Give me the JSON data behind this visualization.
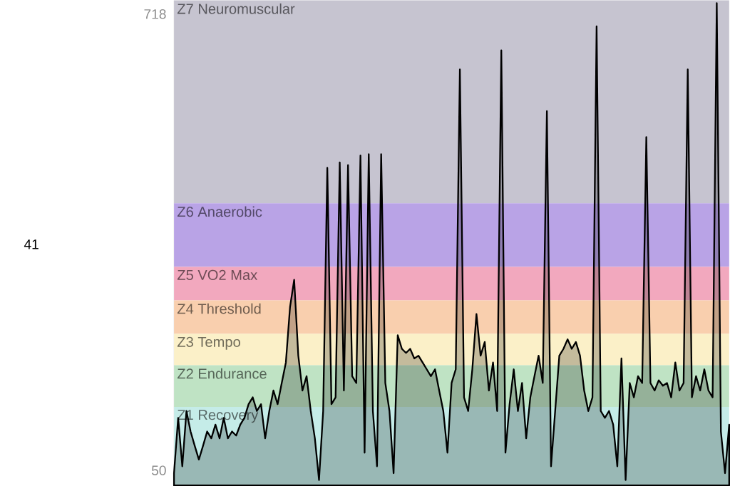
{
  "chart_data": {
    "type": "area",
    "categories": [
      null,
      null,
      null,
      null,
      null,
      null,
      null,
      null,
      null,
      null,
      null,
      null,
      null,
      null,
      null,
      null,
      null,
      null,
      null,
      null,
      null,
      null,
      null,
      null,
      null,
      null,
      null,
      null,
      null,
      null,
      null,
      null,
      null,
      null,
      null,
      null,
      null,
      null,
      null,
      null,
      null,
      null,
      null,
      null,
      null,
      null,
      null,
      null,
      null,
      null,
      null,
      null,
      null,
      null,
      null,
      null,
      null,
      null,
      null,
      null,
      null,
      null,
      null,
      null,
      null,
      null,
      null,
      null,
      null,
      null,
      null,
      null,
      null,
      null,
      null,
      null,
      null,
      null,
      null,
      null,
      null,
      null,
      null,
      null,
      null,
      null,
      null,
      null,
      null,
      null,
      null,
      null,
      null,
      null,
      null,
      null,
      null,
      null,
      null,
      null,
      null,
      null,
      null,
      null,
      null,
      null,
      null,
      null,
      null,
      null,
      null,
      null,
      null,
      null,
      null,
      null,
      null,
      null,
      null,
      null,
      null,
      null,
      null,
      null,
      null,
      null,
      null,
      null,
      null,
      null,
      null,
      null,
      null,
      null,
      null
    ],
    "series": [
      {
        "color": "#000000",
        "values": [
          46,
          127,
          56,
          137,
          107,
          86,
          66,
          86,
          107,
          97,
          117,
          97,
          127,
          97,
          107,
          101,
          117,
          127,
          147,
          157,
          137,
          147,
          97,
          137,
          167,
          147,
          178,
          208,
          289,
          329,
          218,
          167,
          188,
          137,
          97,
          36,
          137,
          493,
          147,
          157,
          501,
          167,
          497,
          188,
          178,
          511,
          76,
          513,
          137,
          56,
          513,
          178,
          137,
          46,
          248,
          228,
          222,
          228,
          214,
          218,
          208,
          198,
          188,
          198,
          167,
          137,
          76,
          178,
          198,
          637,
          157,
          137,
          198,
          279,
          218,
          238,
          167,
          208,
          137,
          665,
          76,
          147,
          198,
          137,
          178,
          97,
          157,
          188,
          218,
          178,
          576,
          56,
          137,
          218,
          228,
          242,
          228,
          238,
          218,
          167,
          137,
          157,
          700,
          137,
          127,
          137,
          117,
          56,
          214,
          36,
          178,
          157,
          188,
          178,
          538,
          178,
          167,
          182,
          174,
          178,
          157,
          208,
          167,
          178,
          637,
          157,
          188,
          167,
          198,
          167,
          157,
          734,
          107,
          46,
          117
        ]
      }
    ],
    "ylim": [
      28,
      738
    ],
    "yticks": [
      50,
      718
    ],
    "annotations": [
      "41"
    ],
    "tick_labels": "y",
    "bands": [
      {
        "axis": "y",
        "from": 441,
        "to": 738,
        "label": "Z7 Neuromuscular",
        "color": "#c6c4d0"
      },
      {
        "axis": "y",
        "from": 348,
        "to": 441,
        "label": "Z6 Anaerobic",
        "color": "#b9a3e6"
      },
      {
        "axis": "y",
        "from": 299,
        "to": 348,
        "label": "Z5 VO2 Max",
        "color": "#f2a8be"
      },
      {
        "axis": "y",
        "from": 250,
        "to": 299,
        "label": "Z4 Threshold",
        "color": "#f9cfae"
      },
      {
        "axis": "y",
        "from": 204,
        "to": 250,
        "label": "Z3 Tempo",
        "color": "#fbf0c8"
      },
      {
        "axis": "y",
        "from": 143,
        "to": 204,
        "label": "Z2 Endurance",
        "color": "#bfe3c4"
      },
      {
        "axis": "y",
        "from": 28,
        "to": 143,
        "label": "Z1 Recovery",
        "color": "#c5ece8"
      }
    ]
  }
}
